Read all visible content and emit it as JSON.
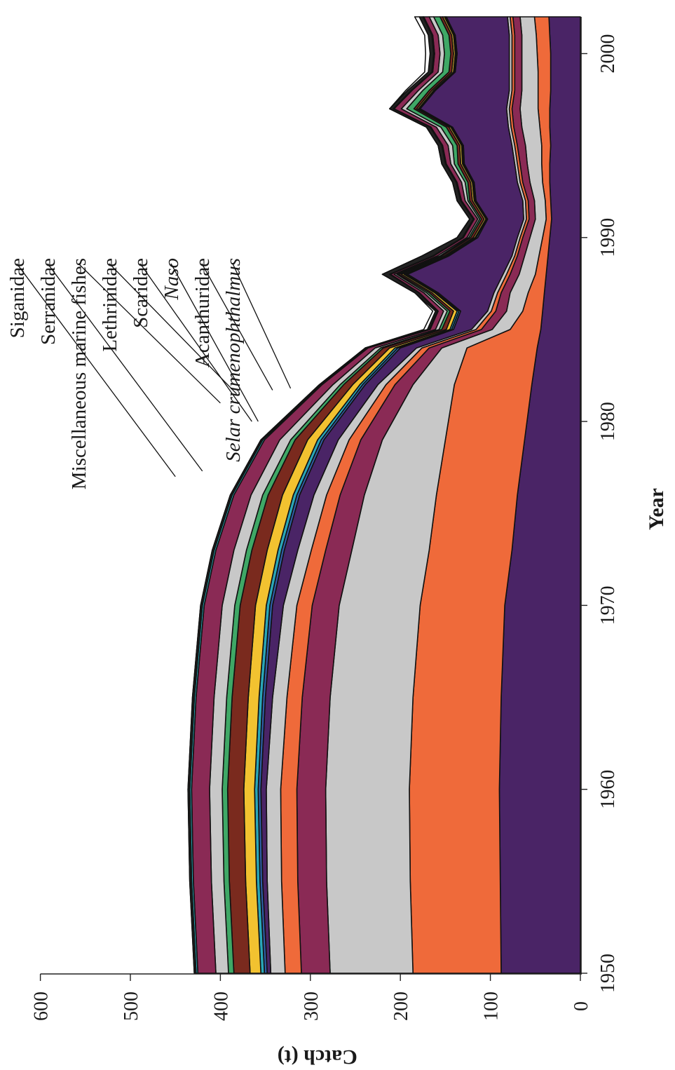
{
  "chart_data": {
    "type": "area",
    "stacked": true,
    "orientation": "rotated-90",
    "xlabel": "Year",
    "ylabel": "Catch (t)",
    "xlim": [
      1950,
      2002
    ],
    "ylim": [
      0,
      600
    ],
    "xticks": [
      "1950",
      "1960",
      "1970",
      "1980",
      "1990",
      "2000"
    ],
    "yticks": [
      "0",
      "100",
      "200",
      "300",
      "400",
      "500",
      "600"
    ],
    "x": [
      1950,
      1955,
      1960,
      1965,
      1970,
      1973,
      1976,
      1979,
      1982,
      1984,
      1985,
      1986,
      1987,
      1988,
      1989,
      1990,
      1991,
      1992,
      1993,
      1994,
      1995,
      1996,
      1997,
      1998,
      1999,
      2000,
      2001,
      2002
    ],
    "series": [
      {
        "color": "#4a2466",
        "values": [
          88,
          89,
          90,
          88,
          84,
          76,
          70,
          62,
          54,
          48,
          44,
          42,
          40,
          38,
          36,
          34,
          32,
          33,
          34,
          34,
          33,
          34,
          34,
          33,
          33,
          33,
          34,
          35
        ]
      },
      {
        "color": "#ef6a3a",
        "values": [
          98,
          100,
          100,
          98,
          94,
          92,
          90,
          88,
          86,
          78,
          34,
          22,
          18,
          12,
          10,
          8,
          6,
          6,
          8,
          9,
          10,
          11,
          13,
          14,
          14,
          15,
          15,
          16
        ]
      },
      {
        "color": "#c8c8c8",
        "values": [
          92,
          93,
          93,
          92,
          90,
          86,
          80,
          70,
          46,
          28,
          20,
          18,
          20,
          18,
          16,
          14,
          12,
          12,
          14,
          16,
          18,
          20,
          20,
          18,
          18,
          17,
          16,
          16
        ]
      },
      {
        "color": "#8a2a55",
        "values": [
          32,
          32,
          32,
          31,
          30,
          29,
          27,
          24,
          20,
          14,
          12,
          12,
          10,
          10,
          8,
          8,
          7,
          7,
          8,
          8,
          9,
          9,
          9,
          8,
          8,
          8,
          8,
          8
        ]
      },
      {
        "color": "#ef6a3a",
        "values": [
          18,
          18,
          18,
          17,
          17,
          16,
          15,
          13,
          10,
          8,
          6,
          5,
          4,
          4,
          3,
          3,
          3,
          3,
          3,
          3,
          3,
          3,
          3,
          3,
          3,
          3,
          3,
          3
        ]
      },
      {
        "color": "#c8c8c8",
        "values": [
          16,
          16,
          16,
          16,
          15,
          15,
          14,
          12,
          9,
          6,
          5,
          4,
          4,
          4,
          3,
          3,
          3,
          3,
          3,
          3,
          3,
          3,
          3,
          3,
          3,
          3,
          3,
          3
        ]
      },
      {
        "name": "Selar crumenophthalmus",
        "color": "#4a2466",
        "values": [
          4,
          5,
          6,
          8,
          12,
          15,
          16,
          16,
          14,
          18,
          20,
          30,
          62,
          106,
          70,
          44,
          40,
          52,
          48,
          56,
          54,
          62,
          96,
          82,
          60,
          58,
          60,
          68
        ]
      },
      {
        "name": "Acanthuridae",
        "color": "#2f5ea8",
        "values": [
          3,
          3,
          3,
          3,
          3,
          3,
          3,
          3,
          3,
          3,
          2,
          2,
          2,
          2,
          2,
          2,
          1,
          1,
          1,
          1,
          1,
          1,
          1,
          1,
          1,
          1,
          1,
          1
        ]
      },
      {
        "name": "Naso",
        "color": "#2aa7b8",
        "values": [
          4,
          4,
          4,
          4,
          4,
          4,
          4,
          4,
          3,
          3,
          2,
          2,
          2,
          2,
          1,
          1,
          1,
          1,
          1,
          1,
          1,
          1,
          1,
          1,
          1,
          1,
          1,
          1
        ]
      },
      {
        "name": "Scaridae",
        "color": "#f2c230",
        "values": [
          12,
          12,
          12,
          12,
          12,
          12,
          12,
          11,
          8,
          6,
          4,
          4,
          3,
          3,
          2,
          2,
          2,
          2,
          2,
          2,
          2,
          2,
          2,
          2,
          2,
          2,
          2,
          2
        ]
      },
      {
        "name": "Lethrinidae",
        "color": "#7a2a1e",
        "values": [
          18,
          18,
          18,
          18,
          17,
          17,
          16,
          14,
          10,
          7,
          5,
          4,
          3,
          3,
          3,
          3,
          3,
          3,
          3,
          3,
          3,
          3,
          3,
          3,
          3,
          3,
          3,
          3
        ]
      },
      {
        "name": "Miscellaneous marine fishes",
        "color": "#3fa866",
        "values": [
          6,
          6,
          6,
          6,
          6,
          6,
          6,
          5,
          4,
          3,
          3,
          3,
          3,
          2,
          2,
          2,
          2,
          2,
          3,
          4,
          5,
          6,
          8,
          7,
          7,
          7,
          7,
          7
        ]
      },
      {
        "name": "Serranidae",
        "color": "#c8c8c8",
        "values": [
          14,
          14,
          14,
          14,
          14,
          14,
          13,
          12,
          8,
          6,
          4,
          4,
          3,
          3,
          3,
          2,
          2,
          3,
          4,
          4,
          5,
          5,
          6,
          5,
          5,
          5,
          5,
          5
        ]
      },
      {
        "name": "Siganidae",
        "color": "#8a2a55",
        "values": [
          20,
          20,
          20,
          20,
          20,
          20,
          19,
          17,
          12,
          8,
          6,
          6,
          5,
          4,
          4,
          4,
          4,
          4,
          5,
          5,
          6,
          6,
          8,
          7,
          6,
          6,
          6,
          6
        ]
      },
      {
        "color": "#2aa7b8",
        "values": [
          2,
          2,
          2,
          2,
          2,
          2,
          2,
          2,
          1,
          1,
          1,
          1,
          1,
          1,
          1,
          1,
          1,
          1,
          1,
          1,
          1,
          1,
          1,
          1,
          1,
          1,
          1,
          1
        ]
      },
      {
        "color": "#222222",
        "values": [
          2,
          2,
          2,
          2,
          2,
          2,
          2,
          2,
          2,
          2,
          2,
          2,
          4,
          8,
          12,
          6,
          4,
          4,
          4,
          4,
          4,
          4,
          4,
          4,
          4,
          4,
          4,
          4
        ]
      },
      {
        "color": "#ffffff",
        "values": [
          0,
          0,
          0,
          0,
          0,
          0,
          0,
          0,
          0,
          0,
          4,
          3,
          0,
          0,
          0,
          0,
          0,
          0,
          0,
          0,
          0,
          0,
          0,
          2,
          4,
          5,
          4,
          5
        ]
      }
    ],
    "legend": {
      "position": "top-right",
      "entries": [
        "Siganidae",
        "Serranidae",
        "Miscellaneous marine fishes",
        "Lethrinidae",
        "Scaridae",
        "Naso",
        "Acanthuridae",
        "Selar crumenophthalmus"
      ],
      "italic": [
        false,
        false,
        false,
        false,
        false,
        true,
        false,
        true
      ]
    },
    "grid": false
  }
}
